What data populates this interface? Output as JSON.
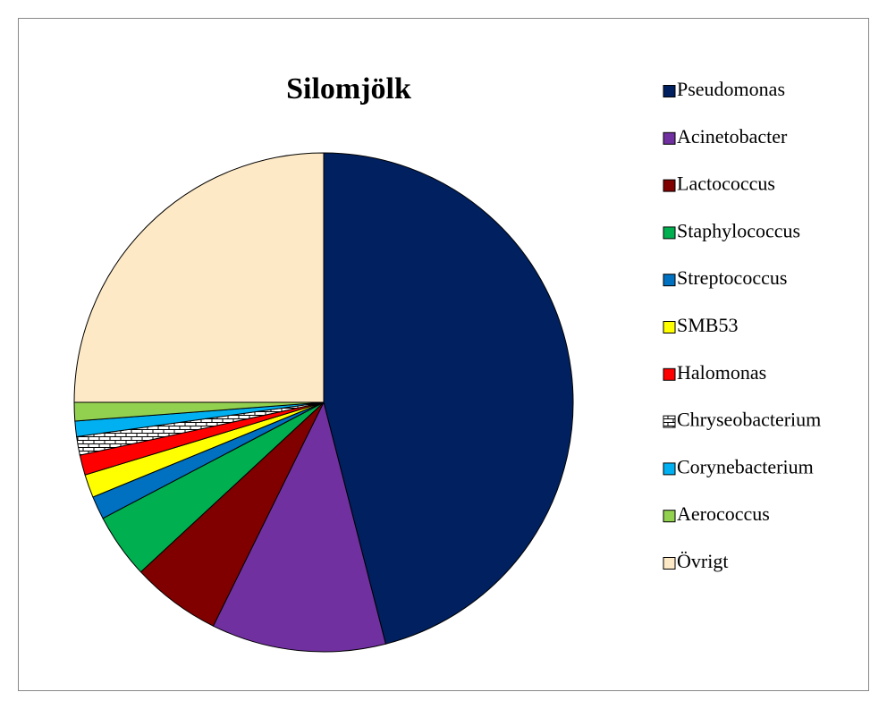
{
  "chart_data": {
    "type": "pie",
    "title": "Silomjölk",
    "categories": [
      "Pseudomonas",
      "Acinetobacter",
      "Lactococcus",
      "Staphylococcus",
      "Streptococcus",
      "SMB53",
      "Halomonas",
      "Chryseobacterium",
      "Corynebacterium",
      "Aerococcus",
      "Övrigt"
    ],
    "values": [
      46,
      11.3,
      5.8,
      4.2,
      1.5,
      1.5,
      1.3,
      1.2,
      1.0,
      1.2,
      25
    ],
    "colors": [
      "#002060",
      "#7030a0",
      "#800000",
      "#00b050",
      "#0070c0",
      "#ffff00",
      "#ff0000",
      "#ffffff",
      "#00b0f0",
      "#92d050",
      "#fde9c5"
    ],
    "patterns": [
      null,
      null,
      null,
      null,
      null,
      null,
      null,
      "bricks",
      null,
      null,
      null
    ],
    "legend": "right"
  }
}
